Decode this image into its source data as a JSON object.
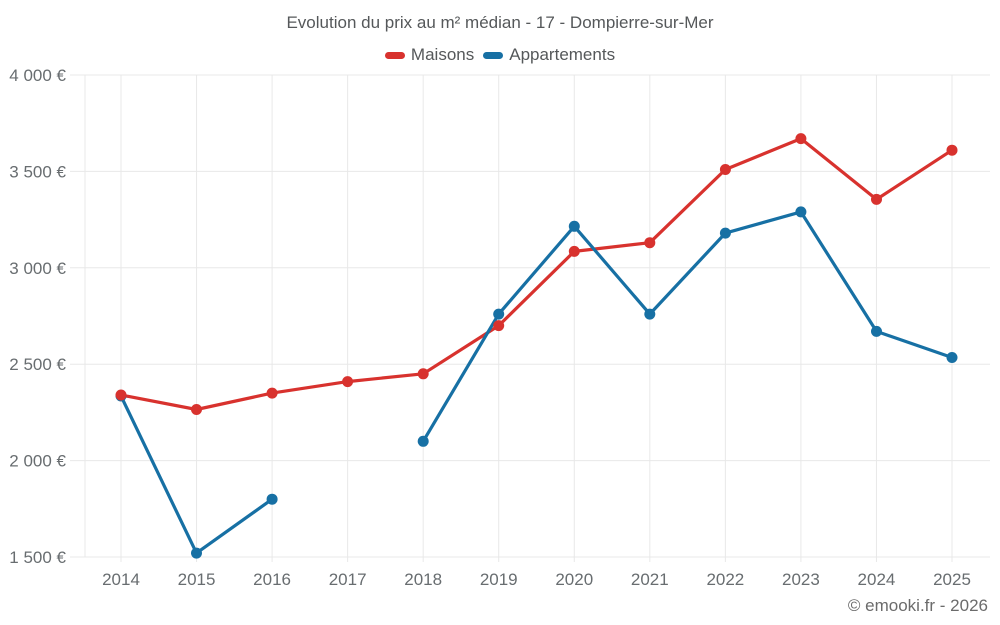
{
  "chart_data": {
    "type": "line",
    "title": "Evolution du prix au m² médian - 17 - Dompierre-sur-Mer",
    "x": [
      2014,
      2015,
      2016,
      2017,
      2018,
      2019,
      2020,
      2021,
      2022,
      2023,
      2024,
      2025
    ],
    "series": [
      {
        "name": "Maisons",
        "color": "#d8322e",
        "values": [
          2340,
          2265,
          2350,
          2410,
          2450,
          2700,
          3085,
          3130,
          3510,
          3670,
          3355,
          3610
        ]
      },
      {
        "name": "Appartements",
        "color": "#1770a4",
        "values": [
          2335,
          1520,
          1800,
          null,
          2100,
          2760,
          3215,
          2760,
          3180,
          3290,
          2670,
          2535
        ]
      }
    ],
    "ylim": [
      1500,
      4000
    ],
    "ytick_step": 500,
    "ytick_labels": [
      "1 500 €",
      "2 000 €",
      "2 500 €",
      "3 000 €",
      "3 500 €",
      "4 000 €"
    ],
    "grid": true,
    "legend_position": "top",
    "currency_suffix": " €"
  },
  "watermark": "© emooki.fr - 2026",
  "colors": {
    "grid": "#e8e8e8",
    "axis_text": "#686d70",
    "title_text": "#55585a",
    "watermark_text": "#6b6b6b"
  }
}
